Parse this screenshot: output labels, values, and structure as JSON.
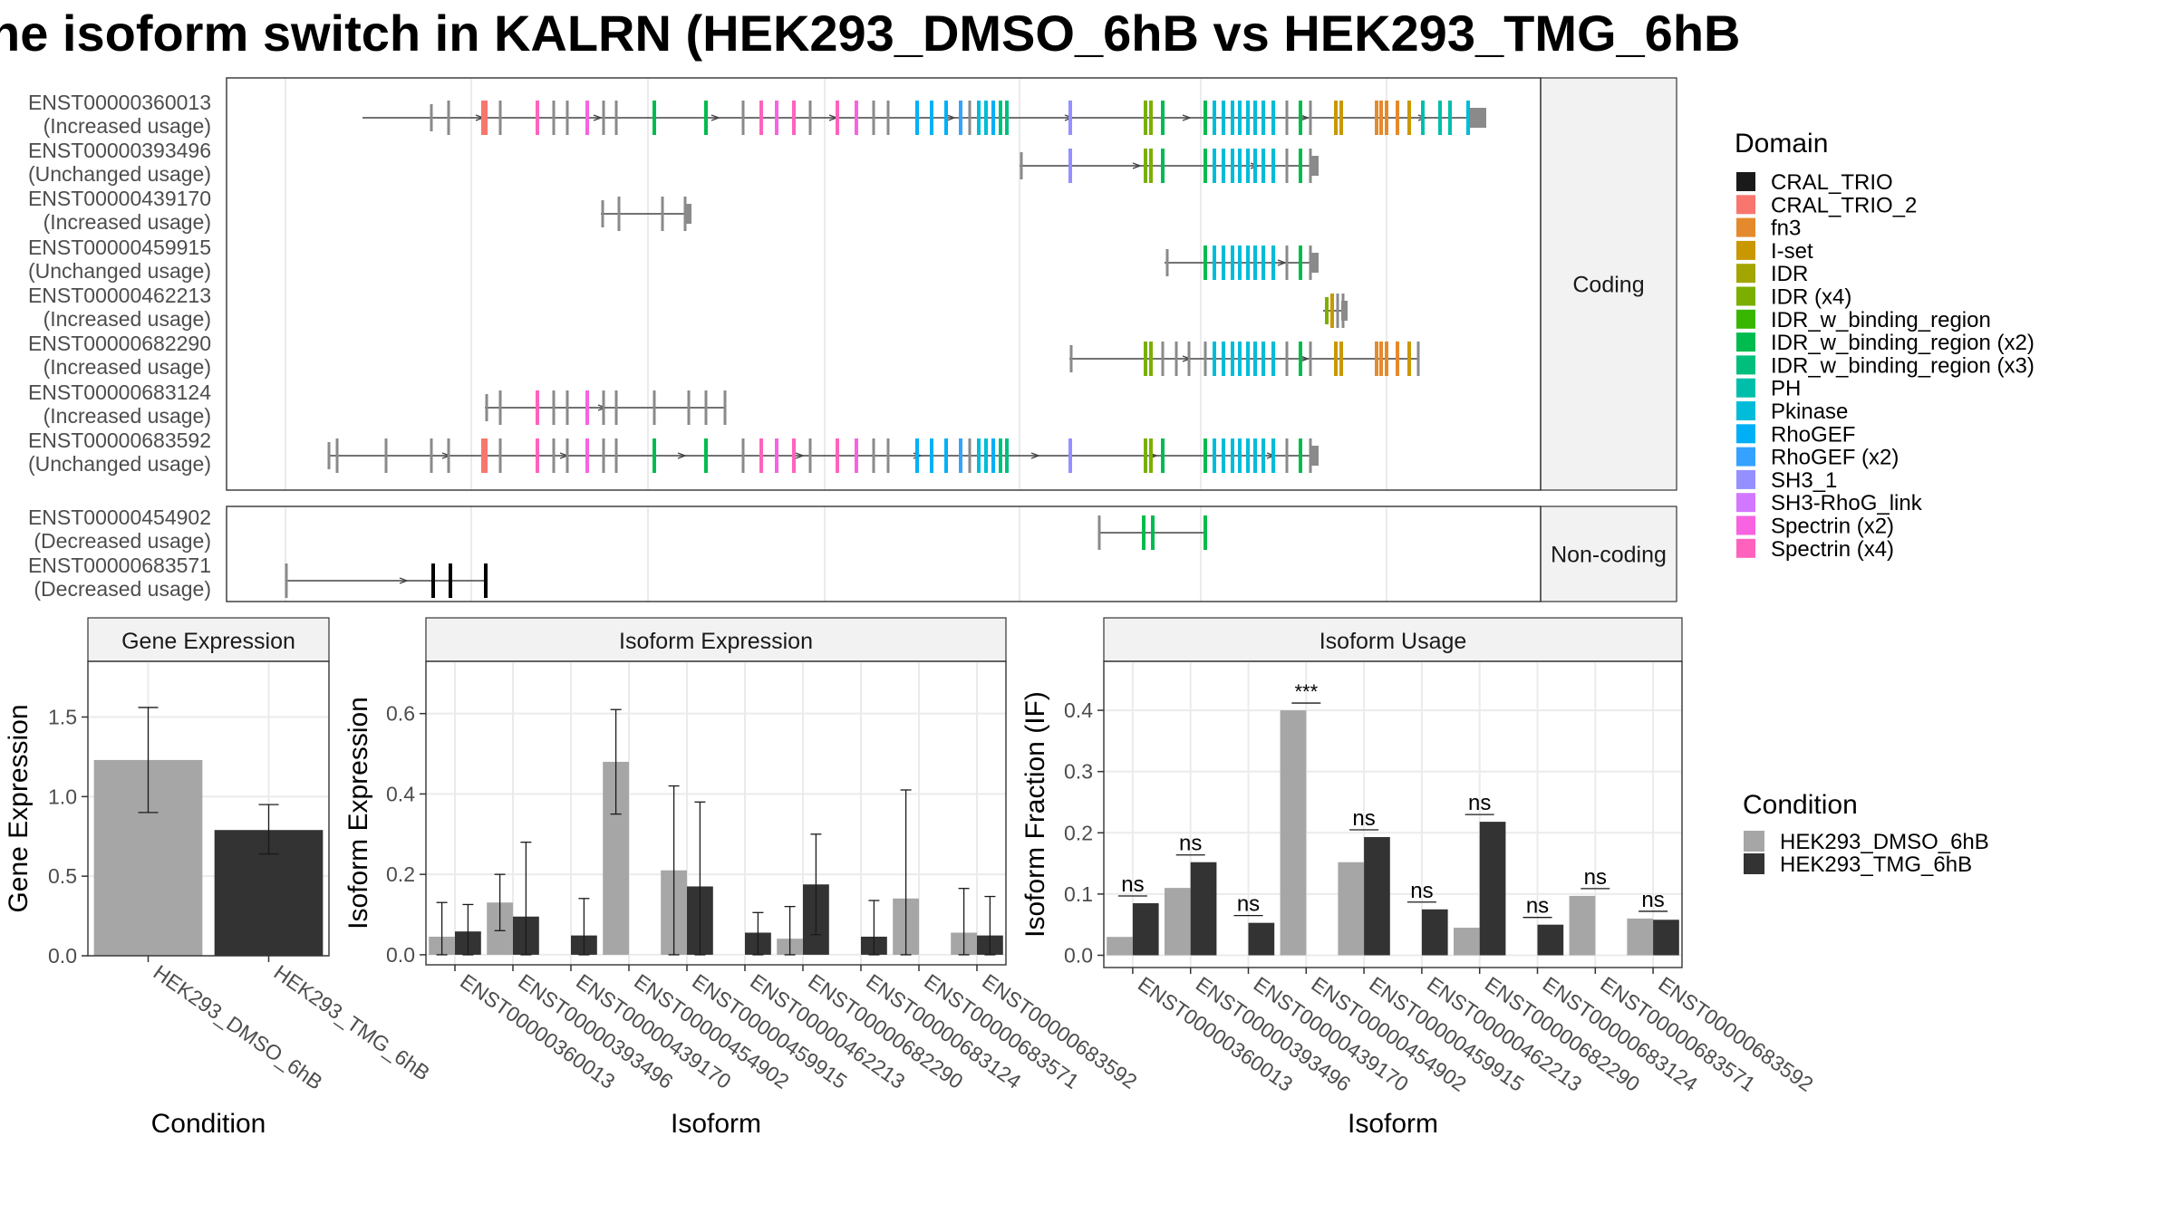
{
  "title": "he isoform switch in KALRN (HEK293_DMSO_6hB vs HEK293_TMG_6hB",
  "colors": {
    "dmso": "#a6a6a6",
    "tmg": "#333333",
    "panel_border": "#333333",
    "strip_fill": "#f2f2f2",
    "intron": "#444444"
  },
  "transcript_panel": {
    "coding_label": "Coding",
    "noncoding_label": "Non-coding",
    "coding": [
      {
        "id": "ENST00000360013",
        "status": "(Increased usage)"
      },
      {
        "id": "ENST00000393496",
        "status": "(Unchanged usage)"
      },
      {
        "id": "ENST00000439170",
        "status": "(Increased usage)"
      },
      {
        "id": "ENST00000459915",
        "status": "(Unchanged usage)"
      },
      {
        "id": "ENST00000462213",
        "status": "(Increased usage)"
      },
      {
        "id": "ENST00000682290",
        "status": "(Increased usage)"
      },
      {
        "id": "ENST00000683124",
        "status": "(Increased usage)"
      },
      {
        "id": "ENST00000683592",
        "status": "(Unchanged usage)"
      }
    ],
    "noncoding": [
      {
        "id": "ENST00000454902",
        "status": "(Decreased usage)"
      },
      {
        "id": "ENST00000683571",
        "status": "(Decreased usage)"
      }
    ]
  },
  "domain_legend": {
    "title": "Domain",
    "items": [
      {
        "label": "CRAL_TRIO",
        "color": "#1a1a1a"
      },
      {
        "label": "CRAL_TRIO_2",
        "color": "#f8766d"
      },
      {
        "label": "fn3",
        "color": "#e58a2c"
      },
      {
        "label": "I-set",
        "color": "#c99800"
      },
      {
        "label": "IDR",
        "color": "#a3a500"
      },
      {
        "label": "IDR (x4)",
        "color": "#7cae00"
      },
      {
        "label": "IDR_w_binding_region",
        "color": "#39b600"
      },
      {
        "label": "IDR_w_binding_region (x2)",
        "color": "#00bb4e"
      },
      {
        "label": "IDR_w_binding_region (x3)",
        "color": "#00bf7d"
      },
      {
        "label": "PH",
        "color": "#00bfaa"
      },
      {
        "label": "Pkinase",
        "color": "#00bcd8"
      },
      {
        "label": "RhoGEF",
        "color": "#00b0f6"
      },
      {
        "label": "RhoGEF (x2)",
        "color": "#35a2ff"
      },
      {
        "label": "SH3_1",
        "color": "#9590ff"
      },
      {
        "label": "SH3-RhoG_link",
        "color": "#d277ff"
      },
      {
        "label": "Spectrin (x2)",
        "color": "#f763e0"
      },
      {
        "label": "Spectrin (x4)",
        "color": "#ff62bc"
      }
    ]
  },
  "condition_legend": {
    "title": "Condition",
    "items": [
      {
        "label": "HEK293_DMSO_6hB",
        "color": "#a6a6a6"
      },
      {
        "label": "HEK293_TMG_6hB",
        "color": "#333333"
      }
    ]
  },
  "chart_data": [
    {
      "type": "bar",
      "title": "Gene Expression",
      "xlabel": "Condition",
      "ylabel": "Gene Expression",
      "ylim": [
        0,
        1.85
      ],
      "yticks": [
        "0.0",
        "0.5",
        "1.0",
        "1.5"
      ],
      "categories": [
        "HEK293_DMSO_6hB",
        "HEK293_TMG_6hB"
      ],
      "values": [
        1.23,
        0.79
      ],
      "error": [
        [
          0.9,
          1.56
        ],
        [
          0.64,
          0.95
        ]
      ]
    },
    {
      "type": "bar",
      "title": "Isoform Expression",
      "xlabel": "Isoform",
      "ylabel": "Isoform Expression",
      "ylim": [
        -0.025,
        0.73
      ],
      "yticks": [
        "0.0",
        "0.2",
        "0.4",
        "0.6"
      ],
      "categories": [
        "ENST00000360013",
        "ENST00000393496",
        "ENST00000439170",
        "ENST00000454902",
        "ENST00000459915",
        "ENST00000462213",
        "ENST00000682290",
        "ENST00000683124",
        "ENST00000683571",
        "ENST00000683592"
      ],
      "series": [
        {
          "name": "HEK293_DMSO_6hB",
          "values": [
            0.045,
            0.13,
            0.0,
            0.48,
            0.21,
            0.0,
            0.04,
            0.0,
            0.14,
            0.055
          ],
          "error": [
            [
              0.0,
              0.13
            ],
            [
              0.06,
              0.2
            ],
            [
              0.0,
              0.0
            ],
            [
              0.35,
              0.61
            ],
            [
              0.0,
              0.42
            ],
            [
              0.0,
              0.0
            ],
            [
              0.0,
              0.12
            ],
            [
              0.0,
              0.0
            ],
            [
              0.0,
              0.41
            ],
            [
              0.0,
              0.165
            ]
          ]
        },
        {
          "name": "HEK293_TMG_6hB",
          "values": [
            0.058,
            0.095,
            0.048,
            0.0,
            0.17,
            0.055,
            0.175,
            0.045,
            0.0,
            0.048
          ],
          "error": [
            [
              0.0,
              0.125
            ],
            [
              0.0,
              0.28
            ],
            [
              0.0,
              0.14
            ],
            [
              0.0,
              0.0
            ],
            [
              0.0,
              0.38
            ],
            [
              0.0,
              0.105
            ],
            [
              0.05,
              0.3
            ],
            [
              0.0,
              0.135
            ],
            [
              0.0,
              0.0
            ],
            [
              0.0,
              0.145
            ]
          ]
        }
      ]
    },
    {
      "type": "bar",
      "title": "Isoform Usage",
      "xlabel": "Isoform",
      "ylabel": "Isoform Fraction (IF)",
      "ylim": [
        -0.02,
        0.48
      ],
      "yticks": [
        "0.0",
        "0.1",
        "0.2",
        "0.3",
        "0.4"
      ],
      "categories": [
        "ENST00000360013",
        "ENST00000393496",
        "ENST00000439170",
        "ENST00000454902",
        "ENST00000459915",
        "ENST00000462213",
        "ENST00000682290",
        "ENST00000683124",
        "ENST00000683571",
        "ENST00000683592"
      ],
      "series": [
        {
          "name": "HEK293_DMSO_6hB",
          "values": [
            0.03,
            0.11,
            0.0,
            0.4,
            0.152,
            0.0,
            0.045,
            0.0,
            0.097,
            0.06
          ]
        },
        {
          "name": "HEK293_TMG_6hB",
          "values": [
            0.085,
            0.152,
            0.053,
            0.0,
            0.193,
            0.075,
            0.218,
            0.05,
            0.0,
            0.058
          ]
        }
      ],
      "significance": [
        "ns",
        "ns",
        "ns",
        "***",
        "ns",
        "ns",
        "ns",
        "ns",
        "ns",
        "ns"
      ]
    }
  ]
}
